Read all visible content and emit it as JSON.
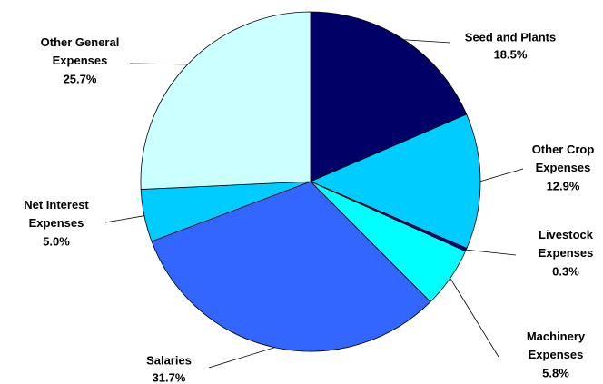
{
  "chart_data": {
    "type": "pie",
    "categories": [
      "Seed and Plants",
      "Other Crop Expenses",
      "Livestock Expenses",
      "Machinery Expenses",
      "Salaries",
      "Net Interest Expenses",
      "Other General Expenses"
    ],
    "values": [
      18.5,
      12.9,
      0.3,
      5.8,
      31.7,
      5.0,
      25.7
    ],
    "value_labels": [
      "18.5%",
      "12.9%",
      "0.3%",
      "5.8%",
      "31.7%",
      "5.0%",
      "25.7%"
    ],
    "colors": [
      "#000066",
      "#00ccff",
      "#000080",
      "#00ffff",
      "#3366ff",
      "#00ccff",
      "#ccffff"
    ]
  }
}
